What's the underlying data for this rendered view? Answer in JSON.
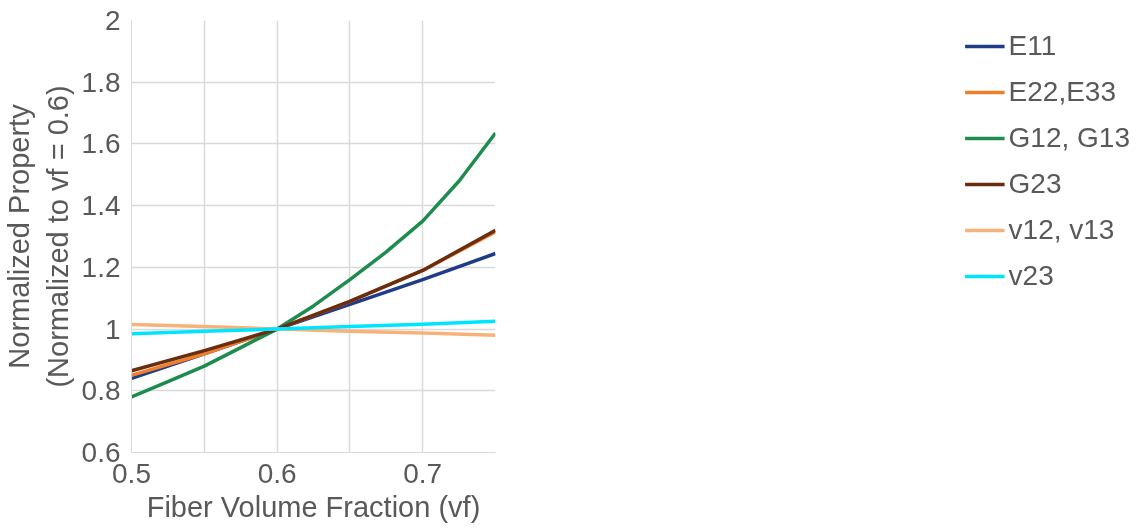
{
  "chart_data": {
    "type": "line",
    "xlabel": "Fiber Volume Fraction (vf)",
    "ylabel": "Normalized Property\n(Normalized to vf = 0.6)",
    "x": [
      0.5,
      0.55,
      0.6,
      0.65,
      0.7,
      0.75
    ],
    "xlim": [
      0.5,
      0.75
    ],
    "xticks": [
      0.5,
      {
        "value": 0.55,
        "label": null
      },
      0.6,
      {
        "value": 0.65,
        "label": null
      },
      0.7
    ],
    "ylim": [
      0.6,
      2
    ],
    "yticks": [
      0.6,
      0.8,
      1,
      1.2,
      1.4,
      1.6,
      1.8,
      2
    ],
    "grid": true,
    "legend": "right",
    "marker": "none",
    "line_style": "solid",
    "series": [
      {
        "name": "E11",
        "color": "#1f3c88",
        "values": [
          0.84,
          0.92,
          1,
          1.08,
          1.16,
          1.245
        ]
      },
      {
        "name": "E22,E33",
        "color": "#f07f2b",
        "values": [
          0.85,
          0.92,
          1,
          1.09,
          1.19,
          1.315
        ]
      },
      {
        "name": "G12, G13",
        "color": "#1e8c4e",
        "x": [
          0.5,
          0.525,
          0.55,
          0.575,
          0.6,
          0.625,
          0.65,
          0.675,
          0.7,
          0.725,
          0.75
        ],
        "values": [
          0.78,
          0.83,
          0.88,
          0.94,
          1,
          1.075,
          1.16,
          1.25,
          1.35,
          1.48,
          1.635
        ]
      },
      {
        "name": "G23",
        "color": "#6b2d10",
        "values": [
          0.865,
          0.93,
          1,
          1.09,
          1.19,
          1.32
        ]
      },
      {
        "name": "v12, v13",
        "color": "#f7b27a",
        "values": [
          1.015,
          1.008,
          1,
          0.993,
          0.987,
          0.98
        ]
      },
      {
        "name": "v23",
        "color": "#00e5ff",
        "values": [
          0.985,
          0.993,
          1,
          1.008,
          1.016,
          1.025
        ]
      }
    ]
  }
}
